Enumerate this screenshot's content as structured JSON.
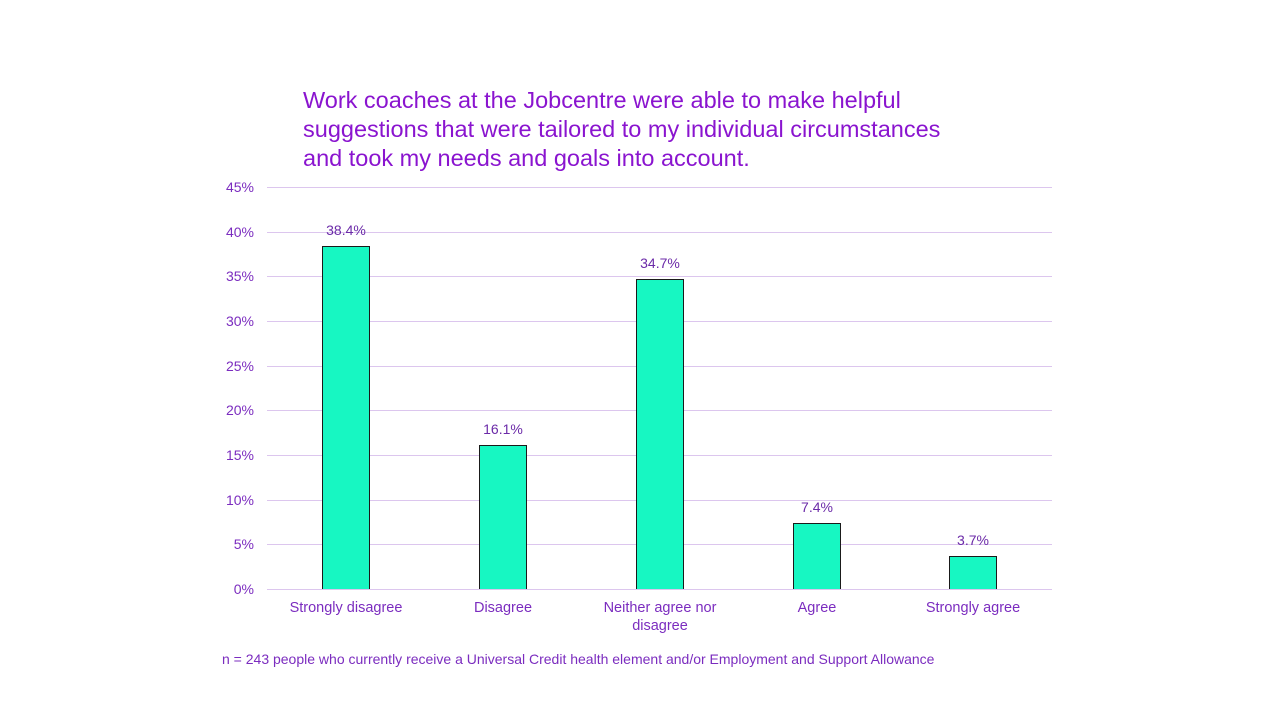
{
  "chart_data": {
    "type": "bar",
    "title": "Work coaches at the Jobcentre were able to make helpful suggestions that were tailored to my individual circumstances and took my needs and goals into account.",
    "categories": [
      "Strongly disagree",
      "Disagree",
      "Neither agree nor disagree",
      "Agree",
      "Strongly agree"
    ],
    "values": [
      38.4,
      16.1,
      34.7,
      7.4,
      3.7
    ],
    "value_labels": [
      "38.4%",
      "16.1%",
      "34.7%",
      "7.4%",
      "3.7%"
    ],
    "xlabel": "",
    "ylabel": "",
    "ylim": [
      0,
      45
    ],
    "yticks": [
      "0%",
      "5%",
      "10%",
      "15%",
      "20%",
      "25%",
      "30%",
      "35%",
      "40%",
      "45%"
    ],
    "grid": true,
    "legend": null,
    "footnote": "n = 243 people who currently receive a Universal Credit health element and/or Employment and Support Allowance",
    "colors": {
      "bar": "#17f7c2",
      "bar_border": "#1a1a1a",
      "text": "#7b2cbf",
      "title": "#8a14cf",
      "grid": "#dcc6ee"
    }
  },
  "title": {
    "line1": "Work coaches at the Jobcentre were able to make helpful",
    "line2": "suggestions that were tailored to my individual circumstances",
    "line3": "and took my needs and goals into account."
  },
  "xlabels": {
    "c0": "Strongly disagree",
    "c1": "Disagree",
    "c2_l1": "Neither agree nor",
    "c2_l2": "disagree",
    "c3": "Agree",
    "c4": "Strongly agree"
  }
}
